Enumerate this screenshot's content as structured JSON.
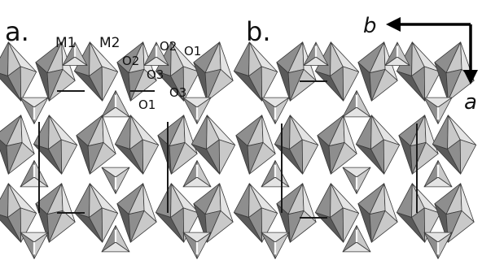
{
  "panel_labels": {
    "a": "a.",
    "b": "b."
  },
  "site_labels": {
    "m1": "M1",
    "m2": "M2",
    "o2_left": "O2",
    "o2_right": "O2",
    "o1_top": "O1",
    "o3_left": "O3",
    "o3_right": "O3",
    "o1_bottom": "O1"
  },
  "axes": {
    "b": "b",
    "a": "a"
  },
  "colors": {
    "dark_face": "#5a5a5a",
    "mid_face": "#8e8e8e",
    "light_face": "#c9c9c9",
    "pale_face": "#e4e4e4",
    "edge": "#3a3a3a",
    "background": "#ffffff",
    "cell_line": "#1a1a1a"
  }
}
